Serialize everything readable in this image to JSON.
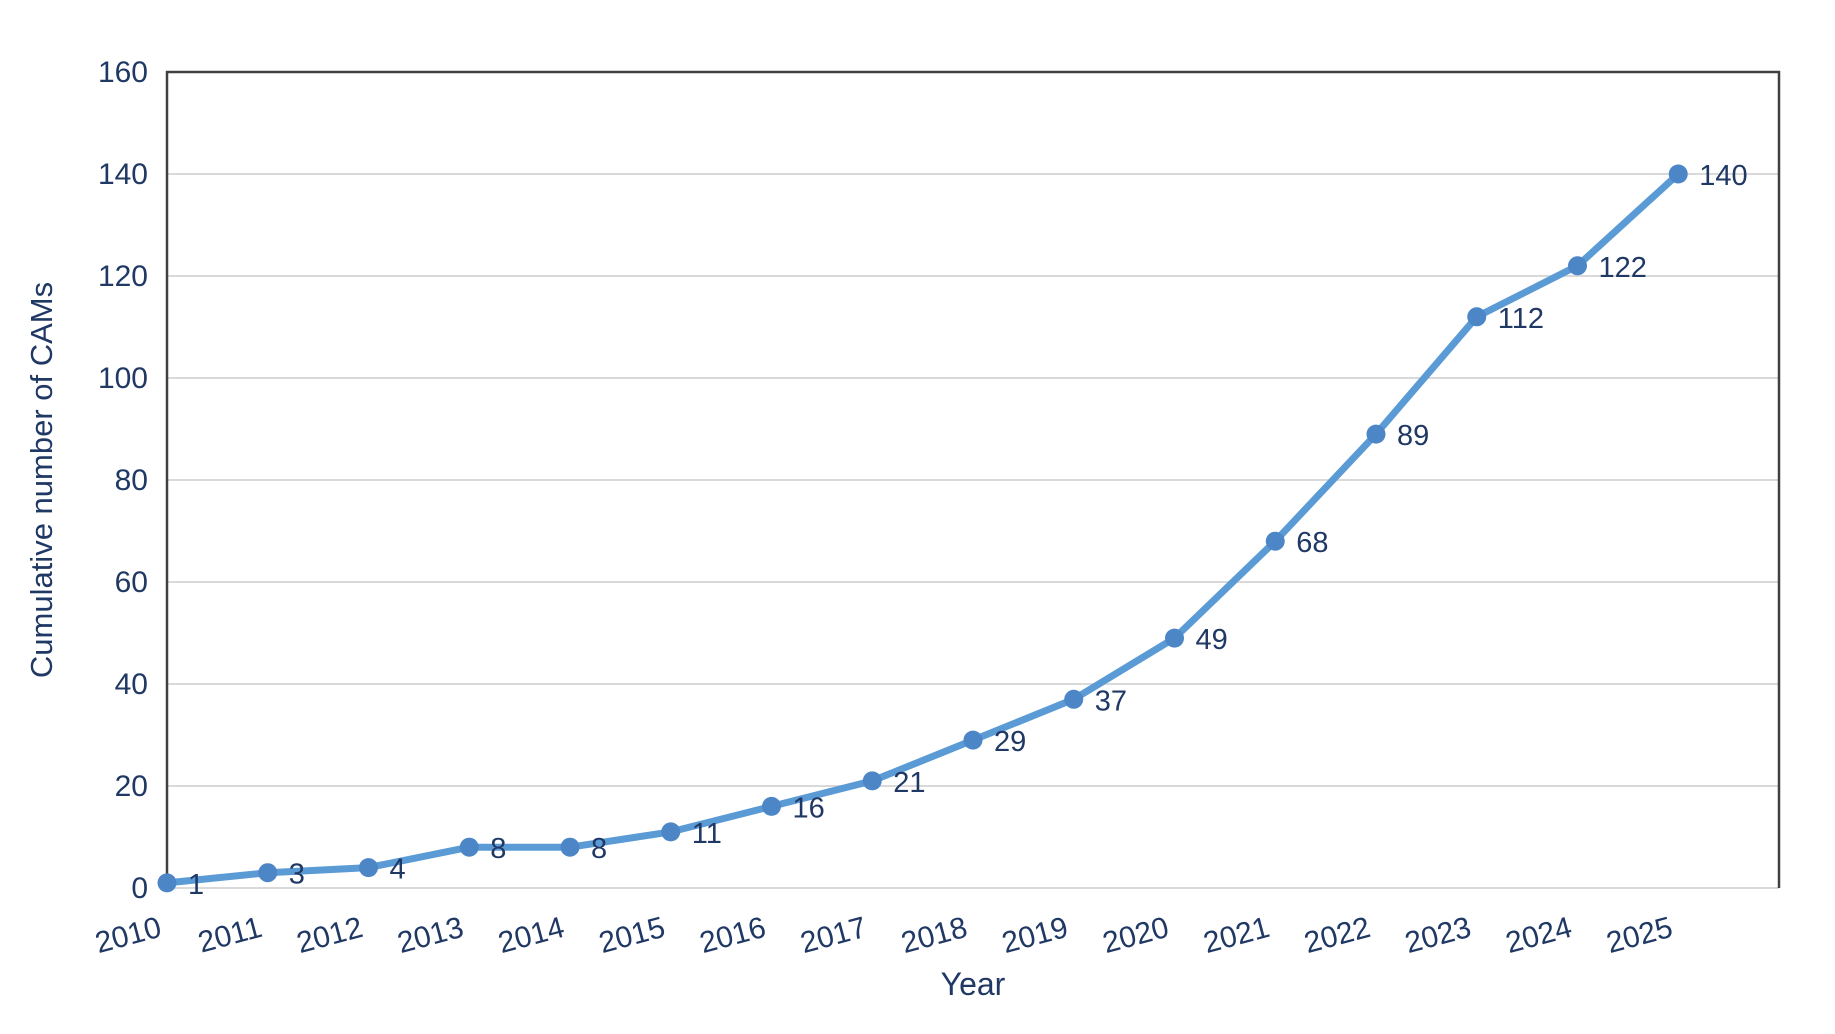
{
  "chart_data": {
    "type": "line",
    "xlabel": "Year",
    "ylabel": "Cumulative number of CAMs",
    "categories": [
      "2010",
      "2011",
      "2012",
      "2013",
      "2014",
      "2015",
      "2016",
      "2017",
      "2018",
      "2019",
      "2020",
      "2021",
      "2022",
      "2023",
      "2024",
      "2025"
    ],
    "values": [
      1,
      3,
      4,
      8,
      8,
      11,
      16,
      21,
      29,
      37,
      49,
      68,
      89,
      112,
      122,
      140
    ],
    "ylim": [
      0,
      160
    ],
    "yticks": [
      0,
      20,
      40,
      60,
      80,
      100,
      120,
      140,
      160
    ],
    "grid": "horizontal",
    "legend": "none",
    "data_labels": true,
    "marker": "circle",
    "colors": {
      "line": "#5b9bd5",
      "marker": "#4c86c6",
      "text": "#1f3864",
      "grid": "#d9d9d9",
      "border": "#404040",
      "background": "#ffffff"
    }
  }
}
